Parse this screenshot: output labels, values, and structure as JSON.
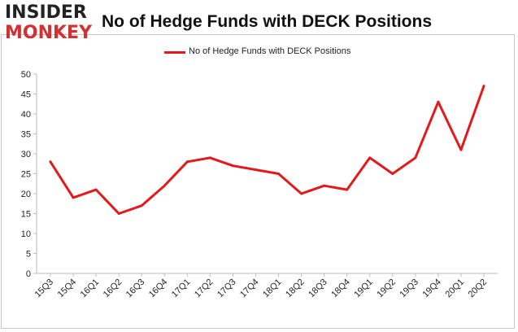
{
  "logo": {
    "line1": "INSIDER",
    "line2": "MONKEY"
  },
  "colors": {
    "series": "#e31a1c",
    "logo_red": "#d52f2f",
    "axis": "#bdbdbd"
  },
  "chart_data": {
    "type": "line",
    "title": "No of Hedge Funds with DECK Positions",
    "xlabel": "",
    "ylabel": "",
    "categories": [
      "15Q3",
      "15Q4",
      "16Q1",
      "16Q2",
      "16Q3",
      "16Q4",
      "17Q1",
      "17Q2",
      "17Q3",
      "17Q4",
      "18Q1",
      "18Q2",
      "18Q3",
      "18Q4",
      "19Q1",
      "19Q2",
      "19Q3",
      "19Q4",
      "20Q1",
      "20Q2"
    ],
    "series": [
      {
        "name": "No of Hedge Funds with DECK Positions",
        "values": [
          28,
          19,
          21,
          15,
          17,
          22,
          28,
          29,
          27,
          26,
          25,
          20,
          22,
          21,
          29,
          25,
          29,
          43,
          31,
          47
        ]
      }
    ],
    "ylim": [
      0,
      50
    ],
    "yticks": [
      0,
      5,
      10,
      15,
      20,
      25,
      30,
      35,
      40,
      45,
      50
    ],
    "grid": false,
    "legend_position": "top-center"
  }
}
